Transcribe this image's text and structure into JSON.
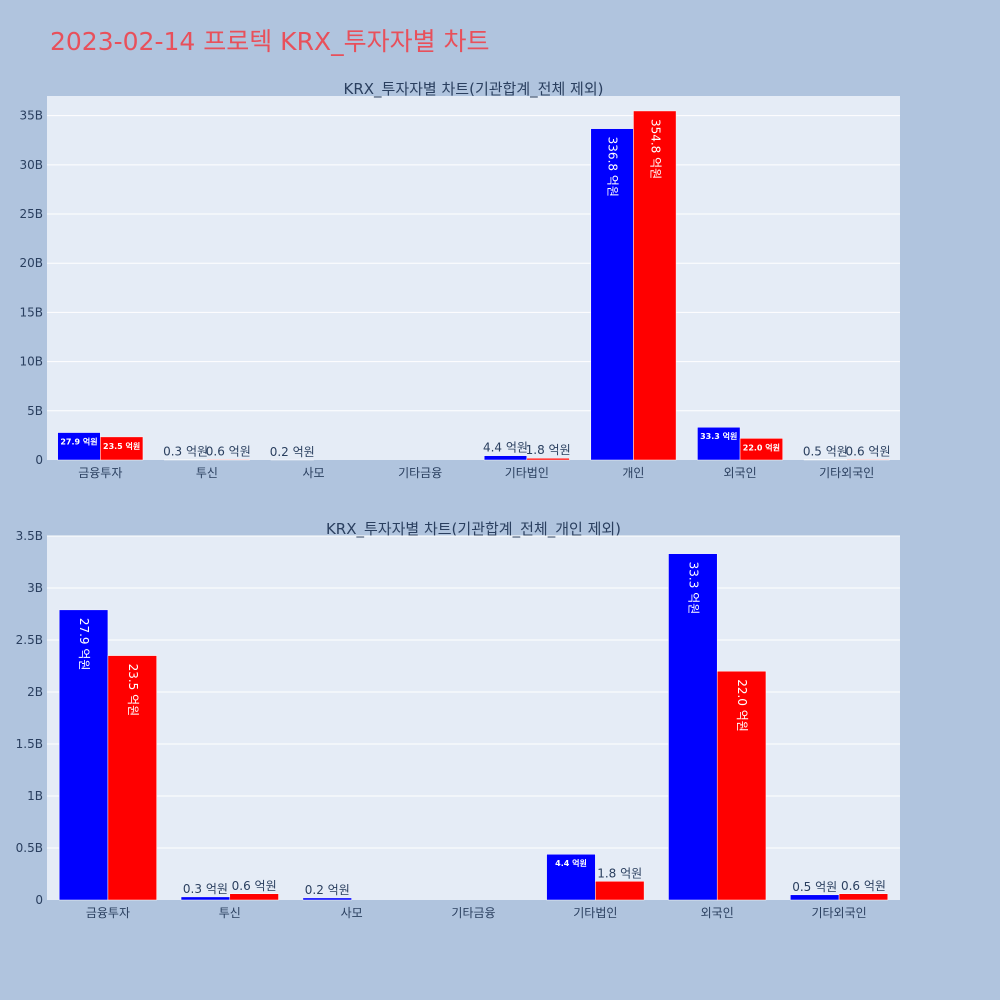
{
  "page_title": "2023-02-14 프로텍 KRX_투자자별 차트",
  "colors": {
    "buy": "#0000ff",
    "sell": "#ff0000",
    "title": "#e8505b",
    "plot_bg": "#e5ecf6",
    "paper_bg": "#b0c4de"
  },
  "chart_data": [
    {
      "type": "bar",
      "title": "KRX_투자자별 차트(기관합계_전체 제외)",
      "categories": [
        "금융투자",
        "투신",
        "사모",
        "기타금융",
        "기타법인",
        "개인",
        "외국인",
        "기타외국인"
      ],
      "series": [
        {
          "values": [
            2.79,
            0.03,
            0.02,
            0,
            0.44,
            33.68,
            3.33,
            0.05
          ],
          "labels": [
            "27.9 억원",
            "0.3 억원",
            "0.2 억원",
            "",
            "4.4 억원",
            "336.8 억원",
            "33.3 억원",
            "0.5 억원"
          ]
        },
        {
          "values": [
            2.35,
            0.06,
            0,
            0,
            0.18,
            35.48,
            2.2,
            0.06
          ],
          "labels": [
            "23.5 억원",
            "0.6 억원",
            "",
            "",
            "1.8 억원",
            "354.8 억원",
            "22.0 억원",
            "0.6 억원"
          ]
        }
      ],
      "ylim": [
        0,
        37
      ],
      "yticks": [
        0,
        5,
        10,
        15,
        20,
        25,
        30,
        35
      ],
      "ytick_labels": [
        "0",
        "5B",
        "10B",
        "15B",
        "20B",
        "25B",
        "30B",
        "35B"
      ],
      "grid": true
    },
    {
      "type": "bar",
      "title": "KRX_투자자별 차트(기관합계_전체_개인 제외)",
      "categories": [
        "금융투자",
        "투신",
        "사모",
        "기타금융",
        "기타법인",
        "외국인",
        "기타외국인"
      ],
      "series": [
        {
          "values": [
            2.79,
            0.03,
            0.02,
            0,
            0.44,
            3.33,
            0.05
          ],
          "labels": [
            "27.9 억원",
            "0.3 억원",
            "0.2 억원",
            "",
            "4.4 억원",
            "33.3 억원",
            "0.5 억원"
          ]
        },
        {
          "values": [
            2.35,
            0.06,
            0,
            0,
            0.18,
            2.2,
            0.06
          ],
          "labels": [
            "23.5 억원",
            "0.6 억원",
            "",
            "",
            "1.8 억원",
            "22.0 억원",
            "0.6 억원"
          ]
        }
      ],
      "ylim": [
        0,
        3.5
      ],
      "yticks": [
        0,
        0.5,
        1,
        1.5,
        2,
        2.5,
        3,
        3.5
      ],
      "ytick_labels": [
        "0",
        "0.5B",
        "1B",
        "1.5B",
        "2B",
        "2.5B",
        "3B",
        "3.5B"
      ],
      "grid": true
    }
  ]
}
